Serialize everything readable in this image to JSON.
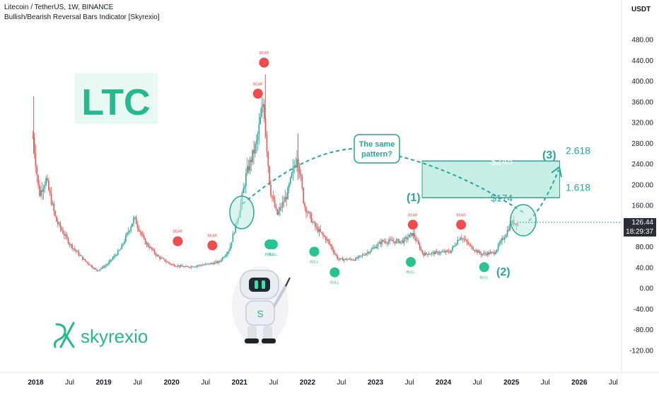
{
  "header": {
    "title": "Litecoin / TetherUS, 1W, BINANCE",
    "indicator": "Bullish/Bearish Reversal Bars Indicator [Skyrexio]"
  },
  "axis": {
    "currency": "USDT",
    "current_price": "126.44",
    "countdown": "18:29:37"
  },
  "overlay": {
    "ticker": "LTC",
    "brand": "skyrexio",
    "callout": "The same pattern?",
    "wave_1": "(1)",
    "wave_2": "(2)",
    "wave_3": "(3)",
    "level_245": "$245",
    "level_174": "$174",
    "fib_high": "2.618",
    "fib_low": "1.618",
    "bear_label": "BEAR",
    "bull_label": "BULL"
  },
  "colors": {
    "up": "#26a69a",
    "down": "#ef5350",
    "bull_dot": "#26c48f",
    "bear_dot": "#ef4d4d",
    "accent": "#26a69a",
    "zone_fill": "#bdebe0"
  },
  "chart_data": {
    "type": "candlestick",
    "title": "Litecoin / TetherUS, 1W, BINANCE",
    "y_ticks": [
      480,
      440,
      400,
      360,
      320,
      280,
      240,
      200,
      160,
      120,
      80,
      40,
      0,
      -40,
      -80,
      -120
    ],
    "y_range": [
      -140,
      520
    ],
    "x_ticks": [
      "2018",
      "Jul",
      "2019",
      "Jul",
      "2020",
      "Jul",
      "2021",
      "Jul",
      "2022",
      "Jul",
      "2023",
      "Jul",
      "2024",
      "Jul",
      "2025",
      "Jul",
      "2026",
      "Jul"
    ],
    "price_path": [
      {
        "t": 2017.96,
        "v": 290
      },
      {
        "t": 2018.05,
        "v": 180
      },
      {
        "t": 2018.15,
        "v": 210
      },
      {
        "t": 2018.3,
        "v": 130
      },
      {
        "t": 2018.5,
        "v": 85
      },
      {
        "t": 2018.7,
        "v": 55
      },
      {
        "t": 2018.9,
        "v": 33
      },
      {
        "t": 2019.05,
        "v": 45
      },
      {
        "t": 2019.25,
        "v": 75
      },
      {
        "t": 2019.45,
        "v": 135
      },
      {
        "t": 2019.6,
        "v": 90
      },
      {
        "t": 2019.8,
        "v": 60
      },
      {
        "t": 2020.0,
        "v": 45
      },
      {
        "t": 2020.2,
        "v": 40
      },
      {
        "t": 2020.5,
        "v": 45
      },
      {
        "t": 2020.7,
        "v": 50
      },
      {
        "t": 2020.85,
        "v": 75
      },
      {
        "t": 2021.0,
        "v": 150
      },
      {
        "t": 2021.1,
        "v": 220
      },
      {
        "t": 2021.25,
        "v": 280
      },
      {
        "t": 2021.35,
        "v": 360
      },
      {
        "t": 2021.45,
        "v": 190
      },
      {
        "t": 2021.55,
        "v": 140
      },
      {
        "t": 2021.7,
        "v": 180
      },
      {
        "t": 2021.85,
        "v": 260
      },
      {
        "t": 2021.95,
        "v": 160
      },
      {
        "t": 2022.1,
        "v": 120
      },
      {
        "t": 2022.3,
        "v": 90
      },
      {
        "t": 2022.45,
        "v": 55
      },
      {
        "t": 2022.7,
        "v": 55
      },
      {
        "t": 2022.9,
        "v": 70
      },
      {
        "t": 2023.1,
        "v": 90
      },
      {
        "t": 2023.4,
        "v": 90
      },
      {
        "t": 2023.55,
        "v": 105
      },
      {
        "t": 2023.7,
        "v": 65
      },
      {
        "t": 2023.9,
        "v": 68
      },
      {
        "t": 2024.1,
        "v": 70
      },
      {
        "t": 2024.25,
        "v": 100
      },
      {
        "t": 2024.4,
        "v": 80
      },
      {
        "t": 2024.55,
        "v": 65
      },
      {
        "t": 2024.75,
        "v": 68
      },
      {
        "t": 2024.9,
        "v": 100
      },
      {
        "t": 2025.0,
        "v": 126
      },
      {
        "t": 2025.1,
        "v": 126
      }
    ],
    "bear_signals": [
      {
        "t": 2020.09,
        "v": 90
      },
      {
        "t": 2020.6,
        "v": 82
      },
      {
        "t": 2021.36,
        "v": 435
      },
      {
        "t": 2021.27,
        "v": 375
      },
      {
        "t": 2023.55,
        "v": 122
      },
      {
        "t": 2024.26,
        "v": 122
      }
    ],
    "bull_signals": [
      {
        "t": 2021.44,
        "v": 84
      },
      {
        "t": 2021.49,
        "v": 84
      },
      {
        "t": 2022.1,
        "v": 70
      },
      {
        "t": 2022.4,
        "v": 30
      },
      {
        "t": 2023.52,
        "v": 50
      },
      {
        "t": 2024.6,
        "v": 40
      }
    ],
    "zone": {
      "from_t": 2024.0,
      "to_t": 2025.7,
      "low": 174,
      "high": 245
    },
    "current_price": 126.44
  }
}
